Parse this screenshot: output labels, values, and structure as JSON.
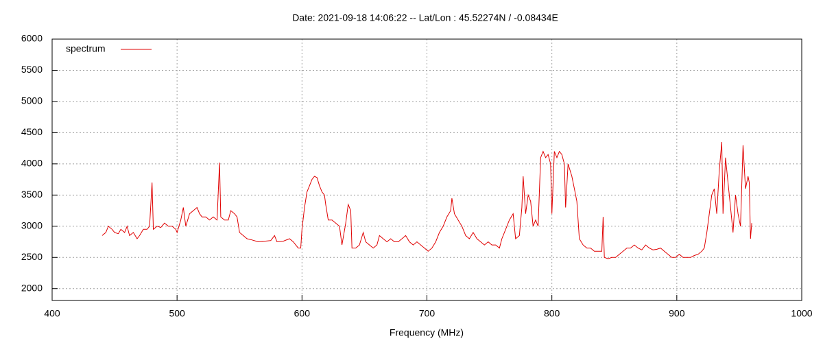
{
  "chart_data": {
    "type": "line",
    "title": "Date: 2021-09-18 14:06:22  --  Lat/Lon : 45.52274N / -0.08434E",
    "x_label": "Frequency (MHz)",
    "xlim": [
      400,
      1000
    ],
    "xticks": [
      400,
      500,
      600,
      700,
      800,
      900,
      1000
    ],
    "ylim": [
      1810,
      6000
    ],
    "yticks": [
      2000,
      2500,
      3000,
      3500,
      4000,
      4500,
      5000,
      5500,
      6000
    ],
    "grid": true,
    "legend": "top left",
    "series": [
      {
        "name": "spectrum",
        "color": "#e00000",
        "x": [
          440,
          443,
          445,
          448,
          450,
          453,
          455,
          458,
          460,
          462,
          465,
          468,
          470,
          473,
          476,
          478,
          480,
          481,
          484,
          487,
          490,
          493,
          496,
          499,
          500,
          503,
          505,
          507,
          510,
          513,
          516,
          518,
          520,
          523,
          526,
          529,
          532,
          534,
          535,
          538,
          541,
          543,
          546,
          548,
          550,
          553,
          556,
          560,
          565,
          570,
          575,
          578,
          580,
          585,
          590,
          593,
          595,
          597,
          599,
          600,
          602,
          604,
          606,
          608,
          610,
          612,
          614,
          616,
          618,
          619,
          621,
          624,
          627,
          630,
          632,
          635,
          637,
          639,
          640,
          643,
          646,
          649,
          651,
          654,
          657,
          660,
          662,
          665,
          668,
          671,
          674,
          677,
          680,
          683,
          686,
          689,
          692,
          695,
          698,
          701,
          704,
          707,
          710,
          713,
          716,
          719,
          720,
          722,
          725,
          728,
          731,
          734,
          737,
          740,
          743,
          746,
          749,
          752,
          755,
          758,
          760,
          763,
          766,
          769,
          771,
          774,
          776,
          777,
          779,
          781,
          783,
          785,
          787,
          789,
          791,
          793,
          795,
          797,
          799,
          800,
          802,
          804,
          806,
          808,
          810,
          811,
          813,
          816,
          818,
          820,
          822,
          825,
          828,
          831,
          834,
          837,
          840,
          841,
          842,
          845,
          848,
          851,
          854,
          857,
          860,
          863,
          866,
          869,
          872,
          875,
          878,
          881,
          884,
          887,
          890,
          893,
          896,
          899,
          902,
          905,
          908,
          911,
          914,
          917,
          920,
          922,
          924,
          926,
          928,
          930,
          932,
          934,
          936,
          937,
          939,
          941,
          943,
          945,
          947,
          949,
          951,
          953,
          955,
          957,
          958,
          959,
          960
        ],
        "values": [
          2850,
          2900,
          3000,
          2950,
          2900,
          2880,
          2950,
          2900,
          3000,
          2850,
          2900,
          2800,
          2850,
          2950,
          2950,
          3000,
          3700,
          2950,
          3000,
          2980,
          3050,
          3000,
          3000,
          2950,
          2900,
          3100,
          3300,
          3000,
          3200,
          3250,
          3300,
          3200,
          3150,
          3150,
          3100,
          3150,
          3100,
          4020,
          3150,
          3100,
          3100,
          3250,
          3200,
          3150,
          2900,
          2850,
          2800,
          2780,
          2750,
          2760,
          2770,
          2850,
          2750,
          2760,
          2800,
          2750,
          2700,
          2650,
          2650,
          2950,
          3300,
          3550,
          3650,
          3750,
          3800,
          3780,
          3650,
          3550,
          3500,
          3350,
          3100,
          3100,
          3050,
          3000,
          2700,
          3050,
          3350,
          3250,
          2650,
          2650,
          2700,
          2900,
          2750,
          2700,
          2650,
          2700,
          2850,
          2800,
          2750,
          2800,
          2750,
          2750,
          2800,
          2850,
          2750,
          2700,
          2750,
          2700,
          2650,
          2600,
          2650,
          2750,
          2900,
          3000,
          3150,
          3250,
          3450,
          3200,
          3100,
          3000,
          2850,
          2800,
          2900,
          2800,
          2750,
          2700,
          2750,
          2700,
          2700,
          2650,
          2800,
          2950,
          3100,
          3200,
          2800,
          2850,
          3300,
          3800,
          3200,
          3500,
          3400,
          3000,
          3100,
          3000,
          4100,
          4200,
          4100,
          4150,
          4000,
          3200,
          4200,
          4100,
          4200,
          4150,
          4000,
          3300,
          4000,
          3800,
          3600,
          3400,
          2800,
          2700,
          2650,
          2650,
          2600,
          2600,
          2600,
          3150,
          2500,
          2480,
          2500,
          2500,
          2550,
          2600,
          2650,
          2650,
          2700,
          2650,
          2620,
          2700,
          2650,
          2620,
          2630,
          2650,
          2600,
          2550,
          2500,
          2500,
          2550,
          2500,
          2500,
          2500,
          2530,
          2550,
          2600,
          2650,
          2900,
          3200,
          3500,
          3600,
          3200,
          3900,
          4350,
          3200,
          4100,
          3700,
          3300,
          2900,
          3500,
          3200,
          3000,
          4300,
          3600,
          3800,
          3700,
          2800,
          3050
        ]
      }
    ]
  }
}
